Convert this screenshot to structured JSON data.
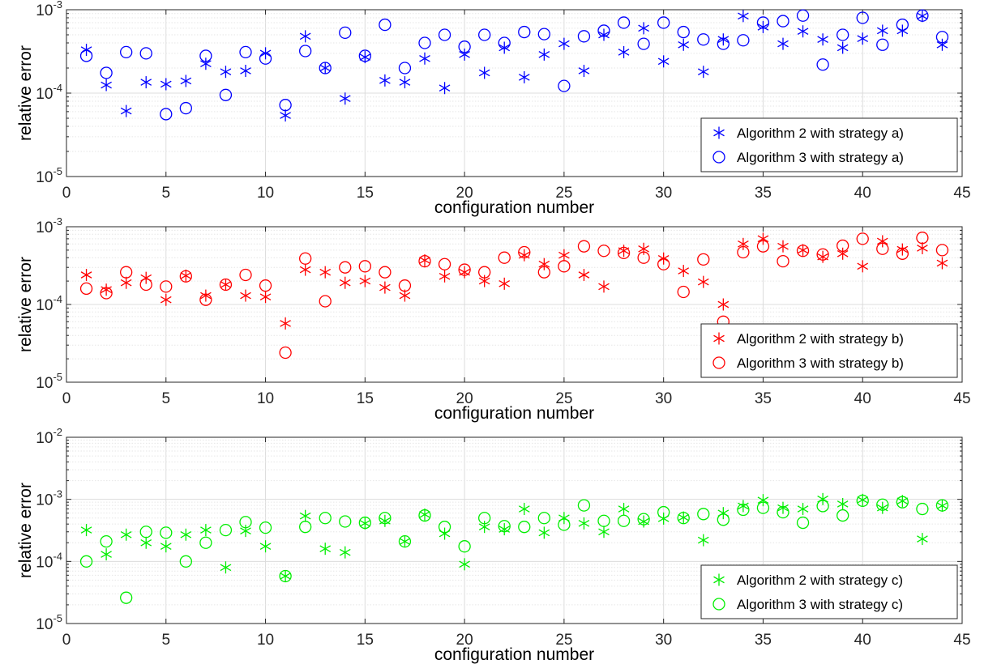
{
  "chart_data": [
    {
      "type": "scatter",
      "xlabel": "configuration number",
      "ylabel": "relative error",
      "xlim": [
        0,
        45
      ],
      "ylim": [
        1e-05,
        0.001
      ],
      "yscale": "log",
      "xticks": [
        "0",
        "5",
        "10",
        "15",
        "20",
        "25",
        "30",
        "35",
        "40",
        "45"
      ],
      "yticks": [
        {
          "base": "10",
          "exp": "-5"
        },
        {
          "base": "10",
          "exp": "-4"
        },
        {
          "base": "10",
          "exp": "-3"
        }
      ],
      "grid": true,
      "legend": "bottom-right",
      "color": "#0000ff",
      "series": [
        {
          "name": "Algorithm 2 with strategy a)",
          "marker": "asterisk",
          "x": [
            1,
            2,
            3,
            4,
            5,
            6,
            7,
            8,
            9,
            10,
            11,
            12,
            13,
            14,
            15,
            16,
            17,
            18,
            19,
            20,
            21,
            22,
            23,
            24,
            25,
            26,
            27,
            28,
            29,
            30,
            31,
            32,
            33,
            34,
            35,
            36,
            37,
            38,
            39,
            40,
            41,
            42,
            43,
            44
          ],
          "y": [
            0.00033,
            0.000125,
            6.1e-05,
            0.000135,
            0.000128,
            0.00014,
            0.000225,
            0.00018,
            0.000185,
            0.0003,
            5.4e-05,
            0.00048,
            0.0002,
            8.6e-05,
            0.00027,
            0.000142,
            0.000135,
            0.00026,
            0.000115,
            0.00029,
            0.000175,
            0.00035,
            0.000155,
            0.00029,
            0.00039,
            0.000185,
            0.0005,
            0.00031,
            0.0006,
            0.00024,
            0.00038,
            0.00018,
            0.00044,
            0.00084,
            0.00062,
            0.00039,
            0.00055,
            0.00044,
            0.00035,
            0.00045,
            0.00056,
            0.00056,
            0.00084,
            0.00038
          ]
        },
        {
          "name": "Algorithm 3 with strategy a)",
          "marker": "circle",
          "x": [
            1,
            2,
            3,
            4,
            5,
            6,
            7,
            8,
            9,
            10,
            11,
            12,
            13,
            14,
            15,
            16,
            17,
            18,
            19,
            20,
            21,
            22,
            23,
            24,
            25,
            26,
            27,
            28,
            29,
            30,
            31,
            32,
            33,
            34,
            35,
            36,
            37,
            38,
            39,
            40,
            41,
            42,
            43,
            44
          ],
          "y": [
            0.00028,
            0.000175,
            0.00031,
            0.0003,
            5.6e-05,
            6.6e-05,
            0.00028,
            9.5e-05,
            0.00031,
            0.00026,
            7.2e-05,
            0.00032,
            0.0002,
            0.00053,
            0.00028,
            0.00066,
            0.0002,
            0.0004,
            0.0005,
            0.00036,
            0.0005,
            0.0004,
            0.00054,
            0.00051,
            0.000122,
            0.00048,
            0.00056,
            0.0007,
            0.00039,
            0.0007,
            0.00054,
            0.00044,
            0.00039,
            0.00043,
            0.0007,
            0.00073,
            0.00085,
            0.00022,
            0.0005,
            0.0008,
            0.00038,
            0.00066,
            0.00085,
            0.00047
          ]
        }
      ]
    },
    {
      "type": "scatter",
      "xlabel": "configuration number",
      "ylabel": "relative error",
      "xlim": [
        0,
        45
      ],
      "ylim": [
        1e-05,
        0.001
      ],
      "yscale": "log",
      "xticks": [
        "0",
        "5",
        "10",
        "15",
        "20",
        "25",
        "30",
        "35",
        "40",
        "45"
      ],
      "yticks": [
        {
          "base": "10",
          "exp": "-5"
        },
        {
          "base": "10",
          "exp": "-4"
        },
        {
          "base": "10",
          "exp": "-3"
        }
      ],
      "grid": true,
      "legend": "bottom-right",
      "color": "#ff0000",
      "series": [
        {
          "name": "Algorithm 2 with strategy b)",
          "marker": "asterisk",
          "x": [
            1,
            2,
            3,
            4,
            5,
            6,
            7,
            8,
            9,
            10,
            11,
            12,
            13,
            14,
            15,
            16,
            17,
            18,
            19,
            20,
            21,
            22,
            23,
            24,
            25,
            26,
            27,
            28,
            29,
            30,
            31,
            32,
            33,
            34,
            35,
            36,
            37,
            38,
            39,
            40,
            41,
            42,
            43,
            44
          ],
          "y": [
            0.00024,
            0.000155,
            0.00019,
            0.00022,
            0.000115,
            0.000235,
            0.00013,
            0.00018,
            0.00013,
            0.000125,
            5.7e-05,
            0.00028,
            0.00026,
            0.00019,
            0.0002,
            0.000165,
            0.00013,
            0.00037,
            0.00023,
            0.00026,
            0.0002,
            0.000185,
            0.00043,
            0.00033,
            0.00043,
            0.00024,
            0.00017,
            0.00049,
            0.00052,
            0.00039,
            0.00027,
            0.000195,
            0.0001,
            0.0006,
            0.0007,
            0.00056,
            0.0005,
            0.00041,
            0.00045,
            0.00031,
            0.00065,
            0.00051,
            0.00053,
            0.00034
          ]
        },
        {
          "name": "Algorithm 3 with strategy b)",
          "marker": "circle",
          "x": [
            1,
            2,
            3,
            4,
            5,
            6,
            7,
            8,
            9,
            10,
            11,
            12,
            13,
            14,
            15,
            16,
            17,
            18,
            19,
            20,
            21,
            22,
            23,
            24,
            25,
            26,
            27,
            28,
            29,
            30,
            31,
            32,
            33,
            34,
            35,
            36,
            37,
            38,
            39,
            40,
            41,
            42,
            43,
            44
          ],
          "y": [
            0.00016,
            0.00014,
            0.00026,
            0.00018,
            0.00017,
            0.00023,
            0.000115,
            0.00018,
            0.00024,
            0.000175,
            2.4e-05,
            0.00039,
            0.00011,
            0.0003,
            0.00031,
            0.00026,
            0.000175,
            0.00036,
            0.00033,
            0.00028,
            0.00026,
            0.0004,
            0.00047,
            0.00026,
            0.00031,
            0.00056,
            0.00049,
            0.00046,
            0.0004,
            0.00033,
            0.000145,
            0.00038,
            6e-05,
            0.00047,
            0.00056,
            0.00036,
            0.00049,
            0.00044,
            0.00057,
            0.0007,
            0.00052,
            0.00045,
            0.00072,
            0.0005
          ]
        }
      ]
    },
    {
      "type": "scatter",
      "xlabel": "configuration number",
      "ylabel": "relative error",
      "xlim": [
        0,
        45
      ],
      "ylim": [
        1e-05,
        0.01
      ],
      "yscale": "log",
      "xticks": [
        "0",
        "5",
        "10",
        "15",
        "20",
        "25",
        "30",
        "35",
        "40",
        "45"
      ],
      "yticks": [
        {
          "base": "10",
          "exp": "-5"
        },
        {
          "base": "10",
          "exp": "-4"
        },
        {
          "base": "10",
          "exp": "-3"
        },
        {
          "base": "10",
          "exp": "-2"
        }
      ],
      "grid": true,
      "legend": "bottom-right",
      "color": "#00ee00",
      "series": [
        {
          "name": "Algorithm 2 with strategy c)",
          "marker": "asterisk",
          "x": [
            1,
            2,
            3,
            4,
            5,
            6,
            7,
            8,
            9,
            10,
            11,
            12,
            13,
            14,
            15,
            16,
            17,
            18,
            19,
            20,
            21,
            22,
            23,
            24,
            25,
            26,
            27,
            28,
            29,
            30,
            31,
            32,
            33,
            34,
            35,
            36,
            37,
            38,
            39,
            40,
            41,
            42,
            43,
            44
          ],
          "y": [
            0.00032,
            0.00013,
            0.00027,
            0.0002,
            0.000175,
            0.00027,
            0.00032,
            8e-05,
            0.00031,
            0.000175,
            5.8e-05,
            0.00054,
            0.00016,
            0.00014,
            0.00041,
            0.00045,
            0.00021,
            0.00057,
            0.00028,
            9e-05,
            0.00036,
            0.00033,
            0.0007,
            0.00029,
            0.0005,
            0.00041,
            0.0003,
            0.0007,
            0.00044,
            0.00049,
            0.00051,
            0.00022,
            0.0006,
            0.00078,
            0.00097,
            0.00073,
            0.0007,
            0.00101,
            0.00084,
            0.00098,
            0.00073,
            0.00094,
            0.00023,
            0.00079
          ]
        },
        {
          "name": "Algorithm 3 with strategy c)",
          "marker": "circle",
          "x": [
            1,
            2,
            3,
            4,
            5,
            6,
            7,
            8,
            9,
            10,
            11,
            12,
            13,
            14,
            15,
            16,
            17,
            18,
            19,
            20,
            21,
            22,
            23,
            24,
            25,
            26,
            27,
            28,
            29,
            30,
            31,
            32,
            33,
            34,
            35,
            36,
            37,
            38,
            39,
            40,
            41,
            42,
            43,
            44
          ],
          "y": [
            0.0001,
            0.00021,
            2.6e-05,
            0.0003,
            0.00029,
            0.0001,
            0.0002,
            0.00032,
            0.00043,
            0.00035,
            5.8e-05,
            0.00036,
            0.0005,
            0.00044,
            0.00042,
            0.0005,
            0.00021,
            0.00055,
            0.00036,
            0.000175,
            0.0005,
            0.00037,
            0.00036,
            0.0005,
            0.00039,
            0.0008,
            0.00045,
            0.00045,
            0.00048,
            0.00062,
            0.0005,
            0.00058,
            0.00047,
            0.00068,
            0.00073,
            0.00062,
            0.00042,
            0.00078,
            0.00055,
            0.00095,
            0.00082,
            0.0009,
            0.0007,
            0.0008
          ]
        }
      ]
    }
  ]
}
